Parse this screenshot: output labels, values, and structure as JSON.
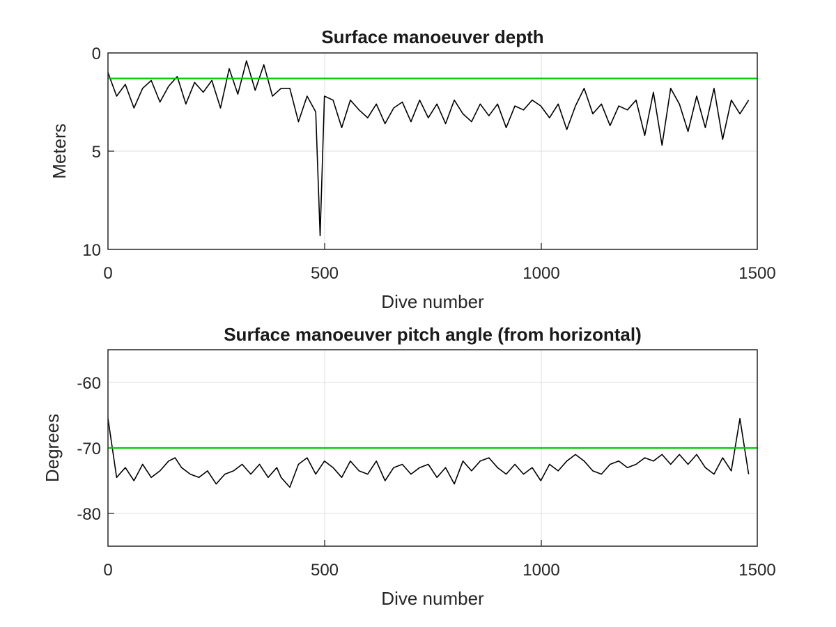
{
  "colors": {
    "data_line": "#000000",
    "reference_line": "#00cc00",
    "grid": "#dedede",
    "axis": "#262626"
  },
  "chart_data": [
    {
      "type": "line",
      "title": "Surface manoeuver depth",
      "xlabel": "Dive number",
      "ylabel": "Meters",
      "xlim": [
        0,
        1500
      ],
      "ylim": [
        0,
        10
      ],
      "y_reversed": true,
      "grid": true,
      "x_ticks": [
        0,
        500,
        1000,
        1500
      ],
      "y_ticks": [
        0,
        5,
        10
      ],
      "x_tick_labels": [
        "0",
        "500",
        "1000",
        "1500"
      ],
      "y_tick_labels": [
        "0",
        "5",
        "10"
      ],
      "reference_line": {
        "y": 1.3
      },
      "series": [
        {
          "x": [
            0,
            20,
            40,
            60,
            80,
            100,
            120,
            140,
            160,
            180,
            200,
            220,
            240,
            260,
            280,
            300,
            320,
            340,
            360,
            380,
            400,
            420,
            440,
            460,
            480,
            490,
            500,
            520,
            540,
            560,
            580,
            600,
            620,
            640,
            660,
            680,
            700,
            720,
            740,
            760,
            780,
            800,
            820,
            840,
            860,
            880,
            900,
            920,
            940,
            960,
            980,
            1000,
            1020,
            1040,
            1060,
            1080,
            1100,
            1120,
            1140,
            1160,
            1180,
            1200,
            1220,
            1240,
            1260,
            1280,
            1300,
            1320,
            1340,
            1360,
            1380,
            1400,
            1420,
            1440,
            1460,
            1480
          ],
          "y": [
            1.0,
            2.2,
            1.6,
            2.8,
            1.8,
            1.4,
            2.5,
            1.7,
            1.2,
            2.6,
            1.5,
            2.0,
            1.4,
            2.8,
            0.8,
            2.1,
            0.4,
            1.9,
            0.6,
            2.2,
            1.8,
            1.8,
            3.5,
            2.2,
            3.0,
            9.3,
            2.2,
            2.4,
            3.8,
            2.4,
            2.9,
            3.3,
            2.6,
            3.6,
            2.8,
            2.5,
            3.5,
            2.4,
            3.3,
            2.6,
            3.6,
            2.4,
            3.1,
            3.5,
            2.6,
            3.2,
            2.6,
            3.8,
            2.7,
            2.9,
            2.4,
            2.7,
            3.3,
            2.6,
            3.9,
            2.7,
            1.8,
            3.1,
            2.6,
            3.7,
            2.7,
            2.9,
            2.4,
            4.2,
            2.0,
            4.7,
            1.8,
            2.6,
            4.0,
            2.2,
            3.8,
            1.8,
            4.4,
            2.4,
            3.1,
            2.4
          ]
        }
      ]
    },
    {
      "type": "line",
      "title": "Surface manoeuver pitch angle (from horizontal)",
      "xlabel": "Dive number",
      "ylabel": "Degrees",
      "xlim": [
        0,
        1500
      ],
      "ylim": [
        -85,
        -55
      ],
      "grid": true,
      "x_ticks": [
        0,
        500,
        1000,
        1500
      ],
      "y_ticks": [
        -60,
        -70,
        -80
      ],
      "x_tick_labels": [
        "0",
        "500",
        "1000",
        "1500"
      ],
      "y_tick_labels": [
        "-60",
        "-70",
        "-80"
      ],
      "reference_line": {
        "y": -70
      },
      "series": [
        {
          "x": [
            0,
            20,
            40,
            60,
            80,
            100,
            120,
            140,
            155,
            170,
            190,
            210,
            230,
            250,
            270,
            290,
            310,
            330,
            350,
            370,
            390,
            400,
            420,
            440,
            460,
            480,
            500,
            520,
            540,
            560,
            580,
            600,
            620,
            640,
            660,
            680,
            700,
            720,
            740,
            760,
            780,
            800,
            820,
            840,
            860,
            880,
            900,
            920,
            940,
            960,
            980,
            1000,
            1020,
            1040,
            1060,
            1080,
            1100,
            1120,
            1140,
            1160,
            1180,
            1200,
            1220,
            1240,
            1260,
            1280,
            1300,
            1320,
            1340,
            1360,
            1380,
            1400,
            1420,
            1440,
            1460,
            1480
          ],
          "y": [
            -65.5,
            -74.5,
            -73.0,
            -75.0,
            -72.5,
            -74.5,
            -73.5,
            -72.0,
            -71.5,
            -73.0,
            -74.0,
            -74.5,
            -73.5,
            -75.5,
            -74.0,
            -73.5,
            -72.5,
            -74.0,
            -72.5,
            -74.5,
            -73.0,
            -74.5,
            -76.0,
            -72.5,
            -71.5,
            -74.0,
            -72.0,
            -73.0,
            -74.5,
            -72.0,
            -73.5,
            -74.0,
            -72.0,
            -75.0,
            -73.0,
            -72.5,
            -74.0,
            -73.0,
            -72.5,
            -74.5,
            -73.0,
            -75.5,
            -72.0,
            -73.5,
            -72.0,
            -71.5,
            -73.0,
            -74.0,
            -72.5,
            -74.0,
            -73.0,
            -75.0,
            -72.5,
            -73.5,
            -72.0,
            -71.0,
            -72.0,
            -73.5,
            -74.0,
            -72.5,
            -72.0,
            -73.0,
            -72.5,
            -71.5,
            -72.0,
            -71.0,
            -72.5,
            -71.0,
            -72.5,
            -71.0,
            -73.0,
            -74.0,
            -71.5,
            -73.5,
            -65.5,
            -74.0
          ]
        }
      ]
    }
  ]
}
